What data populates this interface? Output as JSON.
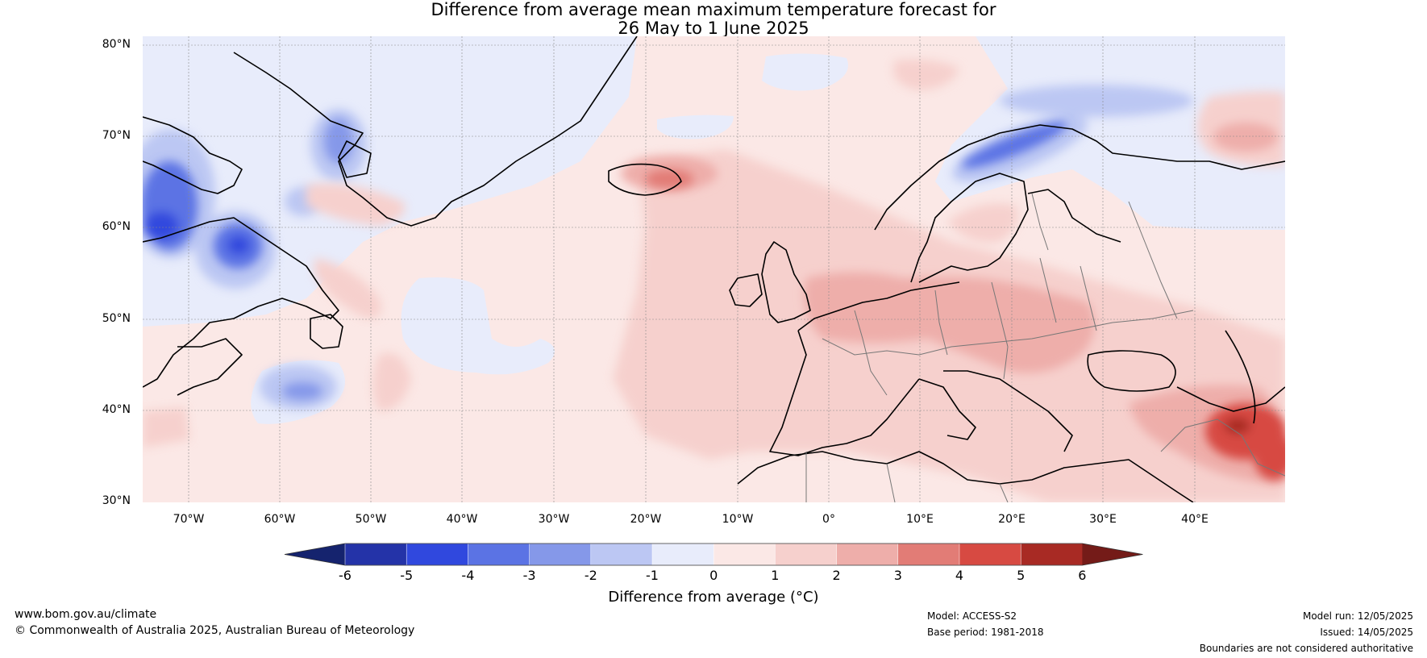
{
  "title_line1": "Difference from average mean maximum temperature forecast for",
  "title_line2": "26 May to 1 June 2025",
  "lat_labels": [
    "80°N",
    "70°N",
    "60°N",
    "50°N",
    "40°N",
    "30°N"
  ],
  "lon_labels": [
    "70°W",
    "60°W",
    "50°W",
    "40°W",
    "30°W",
    "20°W",
    "10°W",
    "0°",
    "10°E",
    "20°E",
    "30°E",
    "40°E"
  ],
  "colorbar": {
    "label": "Difference from average (°C)",
    "ticks": [
      "-6",
      "-5",
      "-4",
      "-3",
      "-2",
      "-1",
      "0",
      "1",
      "2",
      "3",
      "4",
      "5",
      "6"
    ],
    "colors": [
      "#15236e",
      "#2433a8",
      "#3048de",
      "#5b73e4",
      "#8598e9",
      "#bcc7f3",
      "#e8ecfb",
      "#fbe8e6",
      "#f6d0cd",
      "#eeaeaa",
      "#e27c76",
      "#d74a42",
      "#a82a24",
      "#741b18"
    ]
  },
  "footer": {
    "website": "www.bom.gov.au/climate",
    "copyright": "© Commonwealth of Australia 2025, Australian Bureau of Meteorology",
    "model": "Model: ACCESS-S2",
    "base_period": "Base period: 1981-2018",
    "model_run": "Model run: 12/05/2025",
    "issued": "Issued: 14/05/2025",
    "disclaimer": "Boundaries are not considered authoritative"
  }
}
